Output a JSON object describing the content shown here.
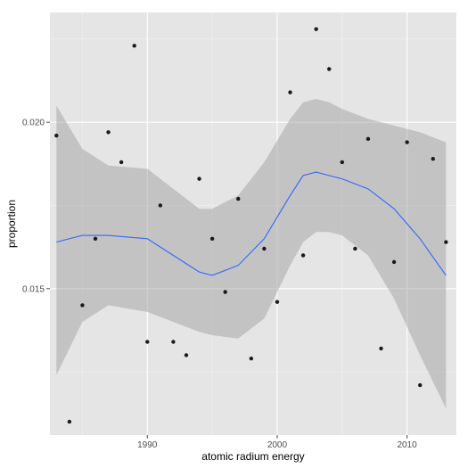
{
  "chart_data": {
    "type": "scatter",
    "title": "",
    "xlabel": "atomic radium energy",
    "ylabel": "proportion",
    "xlim": [
      1982.5,
      2013.8
    ],
    "ylim": [
      0.0106,
      0.0233
    ],
    "x_ticks": [
      1990,
      2000,
      2010
    ],
    "x_tick_labels": [
      "1990",
      "2000",
      "2010"
    ],
    "y_ticks": [
      0.015,
      0.02
    ],
    "y_tick_labels": [
      "0.015",
      "0.020"
    ],
    "grid": true,
    "legend": "none",
    "colors": {
      "panel": "#e5e5e5",
      "grid_major": "#ffffff",
      "grid_minor": "#f2f2f2",
      "point": "#1a1a1a",
      "smooth_line": "#3366ff",
      "confidence_band": "#999999"
    },
    "points": [
      {
        "x": 1983,
        "y": 0.0196
      },
      {
        "x": 1984,
        "y": 0.011
      },
      {
        "x": 1985,
        "y": 0.0145
      },
      {
        "x": 1986,
        "y": 0.0165
      },
      {
        "x": 1987,
        "y": 0.0197
      },
      {
        "x": 1988,
        "y": 0.0188
      },
      {
        "x": 1989,
        "y": 0.0223
      },
      {
        "x": 1990,
        "y": 0.0134
      },
      {
        "x": 1991,
        "y": 0.0175
      },
      {
        "x": 1992,
        "y": 0.0134
      },
      {
        "x": 1993,
        "y": 0.013
      },
      {
        "x": 1994,
        "y": 0.0183
      },
      {
        "x": 1995,
        "y": 0.0165
      },
      {
        "x": 1996,
        "y": 0.0149
      },
      {
        "x": 1997,
        "y": 0.0177
      },
      {
        "x": 1998,
        "y": 0.0129
      },
      {
        "x": 1999,
        "y": 0.0162
      },
      {
        "x": 2000,
        "y": 0.0146
      },
      {
        "x": 2001,
        "y": 0.0209
      },
      {
        "x": 2002,
        "y": 0.016
      },
      {
        "x": 2003,
        "y": 0.0228
      },
      {
        "x": 2004,
        "y": 0.0216
      },
      {
        "x": 2005,
        "y": 0.0188
      },
      {
        "x": 2006,
        "y": 0.0162
      },
      {
        "x": 2007,
        "y": 0.0195
      },
      {
        "x": 2008,
        "y": 0.0132
      },
      {
        "x": 2009,
        "y": 0.0158
      },
      {
        "x": 2010,
        "y": 0.0194
      },
      {
        "x": 2011,
        "y": 0.0121
      },
      {
        "x": 2012,
        "y": 0.0189
      },
      {
        "x": 2013,
        "y": 0.0164
      }
    ],
    "smooth": {
      "x": [
        1983,
        1985,
        1987,
        1990,
        1992,
        1994,
        1995,
        1997,
        1999,
        2001,
        2002,
        2003,
        2004,
        2005,
        2007,
        2009,
        2011,
        2013
      ],
      "y": [
        0.0164,
        0.0166,
        0.0166,
        0.0165,
        0.016,
        0.0155,
        0.0154,
        0.0157,
        0.0165,
        0.0178,
        0.0184,
        0.0185,
        0.0184,
        0.0183,
        0.018,
        0.0174,
        0.0165,
        0.0154
      ],
      "lower": [
        0.0124,
        0.014,
        0.0145,
        0.0143,
        0.014,
        0.0137,
        0.0136,
        0.0135,
        0.0141,
        0.0157,
        0.0164,
        0.0167,
        0.0167,
        0.0166,
        0.016,
        0.0147,
        0.013,
        0.0114
      ],
      "upper": [
        0.0205,
        0.0192,
        0.0187,
        0.0186,
        0.018,
        0.0174,
        0.0174,
        0.0178,
        0.0188,
        0.0201,
        0.0206,
        0.0207,
        0.0206,
        0.0204,
        0.0201,
        0.0199,
        0.0197,
        0.0194
      ]
    }
  }
}
